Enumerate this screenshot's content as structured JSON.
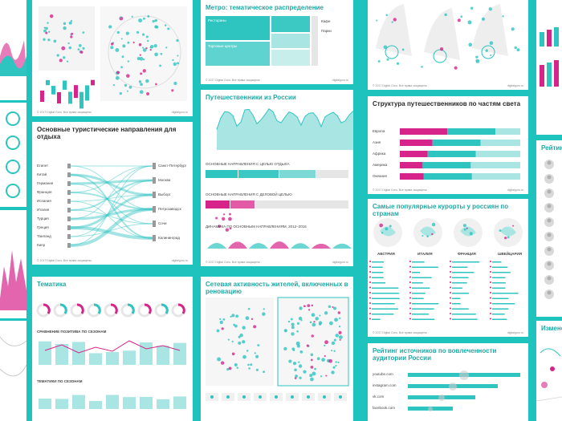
{
  "footer": "© 2017 Digital Guru. Все права защищены",
  "site": "digitalguru.ru",
  "cards": [
    {
      "title": "Метро: тематическое распределение",
      "labels": [
        "Рестораны",
        "Торговые центры",
        "Кафе",
        "Парки"
      ]
    },
    {
      "title": "Основные туристические направления для отдыха",
      "left": [
        "Египет",
        "Китай",
        "Германия",
        "Франция",
        "Испания",
        "Италия",
        "Турция",
        "Греция",
        "Таиланд",
        "Кипр"
      ],
      "right": [
        "Санкт-Петербург",
        "Москва",
        "Выборг",
        "Петрозаводск",
        "Сочи",
        "Калининград"
      ]
    },
    {
      "title": "Путешественники из России",
      "sections": [
        "ОСНОВНЫЕ НАПРАВЛЕНИЯ С ЦЕЛЬЮ ОТДЫХА",
        "ОСНОВНЫЕ НАПРАВЛЕНИЯ С ДЕЛОВОЙ ЦЕЛЬЮ",
        "ДИНАМИКА ПО ОСНОВНЫМ НАПРАВЛЕНИЯМ, 2012–2016"
      ]
    },
    {
      "title": "Структура путешественников по частям света",
      "labels": [
        "Европа",
        "Азия",
        "Африка",
        "Америка",
        "Океания"
      ]
    },
    {
      "title": "Самые популярные курорты у россиян по странам",
      "countries": [
        "АВСТРИЯ",
        "ИТАЛИЯ",
        "ФРАНЦИЯ",
        "ШВЕЙЦАРИЯ"
      ]
    },
    {
      "title": "Тематика",
      "sections": [
        "СРАВНЕНИЕ ПОЗИТИВА ПО СЕЗОНАМ",
        "ТЕМАТИКИ ПО СЕЗОНАМ"
      ]
    },
    {
      "title": "Сетевая активность жителей, включенных в реновацию"
    },
    {
      "title": "Рейтинг источников по вовлеченности аудитории России",
      "labels": [
        "youtube.com",
        "instagram.com",
        "vk.com",
        "facebook.com"
      ]
    },
    {
      "title": "Рейтинг к"
    },
    {
      "title": "Изменени"
    }
  ]
}
